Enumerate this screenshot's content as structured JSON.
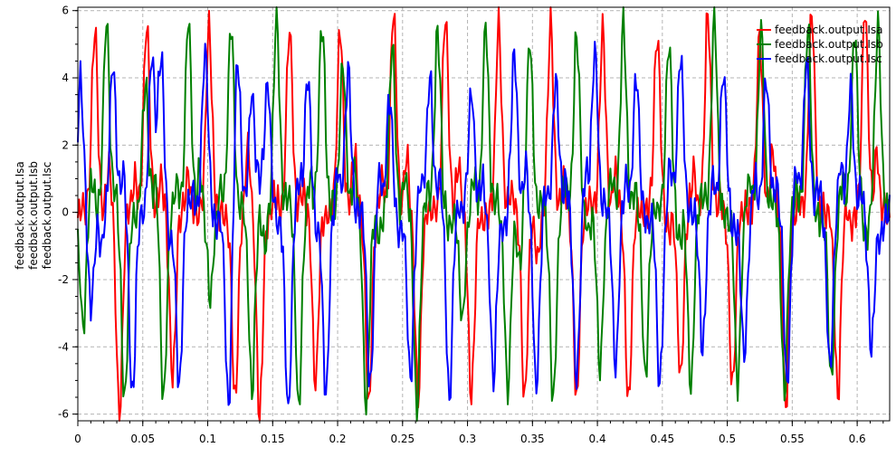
{
  "chart_data": {
    "type": "line",
    "ylabel_lines": [
      "feedback.output.Isa",
      "feedback.output.Isb",
      "feedback.output.Isc"
    ],
    "xlim": [
      0,
      0.625
    ],
    "ylim": [
      -6.2,
      6.1
    ],
    "x_ticks": [
      0,
      0.05,
      0.1,
      0.15,
      0.2,
      0.25,
      0.3,
      0.35,
      0.4,
      0.45,
      0.5,
      0.55,
      0.6
    ],
    "x_tick_labels": [
      "0",
      "0.05",
      "0.1",
      "0.15",
      "0.2",
      "0.25",
      "0.3",
      "0.35",
      "0.4",
      "0.45",
      "0.5",
      "0.55",
      "0.6"
    ],
    "y_ticks": [
      -6,
      -4,
      -2,
      0,
      2,
      4,
      6
    ],
    "y_tick_labels": [
      "-6",
      "-4",
      "-2",
      "0",
      "2",
      "4",
      "6"
    ],
    "grid": true,
    "legend_position": "top-right",
    "sample_step": 0.001,
    "series": [
      {
        "name": "feedback.output.Isa",
        "color": "#ff0000",
        "peak_times": [
          0.013,
          0.032,
          0.053,
          0.073,
          0.101,
          0.121,
          0.14,
          0.163,
          0.183,
          0.202,
          0.224,
          0.243,
          0.262,
          0.283,
          0.303,
          0.324,
          0.344,
          0.364,
          0.384,
          0.404,
          0.424,
          0.446,
          0.464,
          0.485,
          0.504,
          0.525,
          0.545,
          0.565,
          0.585,
          0.606
        ],
        "peak_values": [
          5.4,
          -6.1,
          5.7,
          -5.0,
          5.6,
          -5.7,
          -6.1,
          5.5,
          -5.1,
          5.5,
          -5.8,
          6.0,
          -5.6,
          5.9,
          -5.5,
          5.5,
          -5.6,
          5.6,
          -5.6,
          5.4,
          -5.8,
          5.4,
          -5.0,
          5.9,
          -5.3,
          5.3,
          -5.9,
          6.0,
          -5.5,
          6.1
        ],
        "background_points": [
          [
            0.005,
            0.2
          ],
          [
            0.024,
            1.5
          ],
          [
            0.044,
            0.9
          ],
          [
            0.064,
            1.0
          ],
          [
            0.085,
            1.1
          ],
          [
            0.111,
            0.0
          ],
          [
            0.131,
            1.9
          ],
          [
            0.152,
            0.4
          ],
          [
            0.173,
            0.6
          ],
          [
            0.192,
            -0.2
          ],
          [
            0.213,
            1.8
          ],
          [
            0.234,
            0.9
          ],
          [
            0.253,
            1.7
          ],
          [
            0.273,
            0.2
          ],
          [
            0.293,
            1.5
          ],
          [
            0.313,
            -0.3
          ],
          [
            0.334,
            0.6
          ],
          [
            0.354,
            -1.4
          ],
          [
            0.374,
            1.0
          ],
          [
            0.394,
            0.3
          ],
          [
            0.414,
            1.3
          ],
          [
            0.436,
            0.0
          ],
          [
            0.455,
            -0.5
          ],
          [
            0.474,
            1.2
          ],
          [
            0.494,
            0.4
          ],
          [
            0.515,
            0.1
          ],
          [
            0.535,
            1.8
          ],
          [
            0.555,
            0.3
          ],
          [
            0.575,
            0.0
          ],
          [
            0.596,
            -0.4
          ],
          [
            0.615,
            1.8
          ]
        ]
      },
      {
        "name": "feedback.output.Isb",
        "color": "#008000",
        "peak_times": [
          0.004,
          0.022,
          0.036,
          0.052,
          0.066,
          0.085,
          0.102,
          0.118,
          0.134,
          0.153,
          0.17,
          0.188,
          0.204,
          0.222,
          0.242,
          0.261,
          0.277,
          0.296,
          0.314,
          0.331,
          0.348,
          0.366,
          0.384,
          0.402,
          0.42,
          0.437,
          0.455,
          0.472,
          0.49,
          0.508,
          0.526,
          0.544,
          0.562,
          0.58,
          0.598,
          0.616
        ],
        "peak_values": [
          -3.4,
          5.8,
          -5.7,
          3.8,
          -5.6,
          5.7,
          -2.5,
          5.7,
          -5.3,
          5.8,
          -5.8,
          5.7,
          4.5,
          -5.8,
          5.0,
          -5.8,
          5.5,
          -3.2,
          5.6,
          -5.4,
          5.1,
          -5.7,
          5.3,
          -4.7,
          5.6,
          -5.0,
          5.2,
          -5.2,
          5.8,
          -5.1,
          5.5,
          -5.4,
          5.6,
          -5.0,
          5.4,
          5.6
        ],
        "background_points": [
          [
            0.011,
            1.0
          ],
          [
            0.029,
            0.6
          ],
          [
            0.044,
            -0.2
          ],
          [
            0.06,
            1.0
          ],
          [
            0.076,
            0.8
          ],
          [
            0.094,
            1.2
          ],
          [
            0.11,
            0.8
          ],
          [
            0.126,
            0.2
          ],
          [
            0.144,
            -1.0
          ],
          [
            0.162,
            0.5
          ],
          [
            0.179,
            1.0
          ],
          [
            0.196,
            0.3
          ],
          [
            0.213,
            1.2
          ],
          [
            0.232,
            -0.8
          ],
          [
            0.252,
            1.0
          ],
          [
            0.269,
            0.7
          ],
          [
            0.286,
            -0.5
          ],
          [
            0.305,
            1.0
          ],
          [
            0.322,
            0.4
          ],
          [
            0.34,
            -1.5
          ],
          [
            0.357,
            0.3
          ],
          [
            0.375,
            1.0
          ],
          [
            0.393,
            -0.6
          ],
          [
            0.411,
            1.0
          ],
          [
            0.429,
            0.8
          ],
          [
            0.446,
            0.1
          ],
          [
            0.463,
            -0.9
          ],
          [
            0.481,
            0.6
          ],
          [
            0.499,
            -0.2
          ],
          [
            0.517,
            1.0
          ],
          [
            0.535,
            0.4
          ],
          [
            0.553,
            0.6
          ],
          [
            0.571,
            -0.3
          ],
          [
            0.589,
            1.0
          ],
          [
            0.607,
            -0.7
          ]
        ]
      },
      {
        "name": "feedback.output.Isc",
        "color": "#0000ff",
        "peak_times": [
          0.002,
          0.01,
          0.027,
          0.042,
          0.057,
          0.064,
          0.078,
          0.098,
          0.116,
          0.123,
          0.134,
          0.146,
          0.162,
          0.177,
          0.191,
          0.208,
          0.225,
          0.24,
          0.256,
          0.271,
          0.286,
          0.303,
          0.32,
          0.336,
          0.353,
          0.368,
          0.384,
          0.398,
          0.414,
          0.43,
          0.448,
          0.464,
          0.481,
          0.497,
          0.513,
          0.53,
          0.546,
          0.561,
          0.579,
          0.595,
          0.611
        ],
        "peak_values": [
          3.9,
          -2.9,
          4.5,
          -5.6,
          4.7,
          4.7,
          -5.3,
          4.8,
          -5.8,
          4.5,
          3.6,
          3.9,
          -6.0,
          4.0,
          -5.5,
          4.2,
          -5.3,
          3.4,
          -5.1,
          4.0,
          -5.5,
          3.6,
          -5.0,
          4.8,
          -5.3,
          3.9,
          -5.0,
          4.9,
          -4.6,
          4.0,
          -5.1,
          4.7,
          -4.0,
          4.2,
          -4.4,
          4.0,
          -5.2,
          4.4,
          -4.6,
          3.6,
          -4.1
        ],
        "background_points": [
          [
            0.006,
            0.3
          ],
          [
            0.018,
            -1.0
          ],
          [
            0.035,
            1.2
          ],
          [
            0.05,
            0.0
          ],
          [
            0.071,
            -0.9
          ],
          [
            0.088,
            0.6
          ],
          [
            0.107,
            -0.3
          ],
          [
            0.14,
            0.8
          ],
          [
            0.154,
            -0.4
          ],
          [
            0.17,
            1.0
          ],
          [
            0.184,
            -0.5
          ],
          [
            0.2,
            1.3
          ],
          [
            0.216,
            0.0
          ],
          [
            0.232,
            1.2
          ],
          [
            0.248,
            -0.8
          ],
          [
            0.264,
            0.9
          ],
          [
            0.279,
            1.0
          ],
          [
            0.294,
            0.1
          ],
          [
            0.311,
            1.0
          ],
          [
            0.328,
            -0.6
          ],
          [
            0.345,
            1.3
          ],
          [
            0.36,
            0.6
          ],
          [
            0.376,
            0.9
          ],
          [
            0.391,
            1.3
          ],
          [
            0.406,
            0.3
          ],
          [
            0.422,
            1.0
          ],
          [
            0.439,
            -0.4
          ],
          [
            0.456,
            1.3
          ],
          [
            0.472,
            0.0
          ],
          [
            0.489,
            0.9
          ],
          [
            0.505,
            -0.6
          ],
          [
            0.521,
            1.0
          ],
          [
            0.538,
            0.7
          ],
          [
            0.553,
            1.3
          ],
          [
            0.57,
            0.9
          ],
          [
            0.587,
            1.4
          ],
          [
            0.603,
            0.6
          ],
          [
            0.618,
            -0.8
          ]
        ]
      }
    ]
  }
}
